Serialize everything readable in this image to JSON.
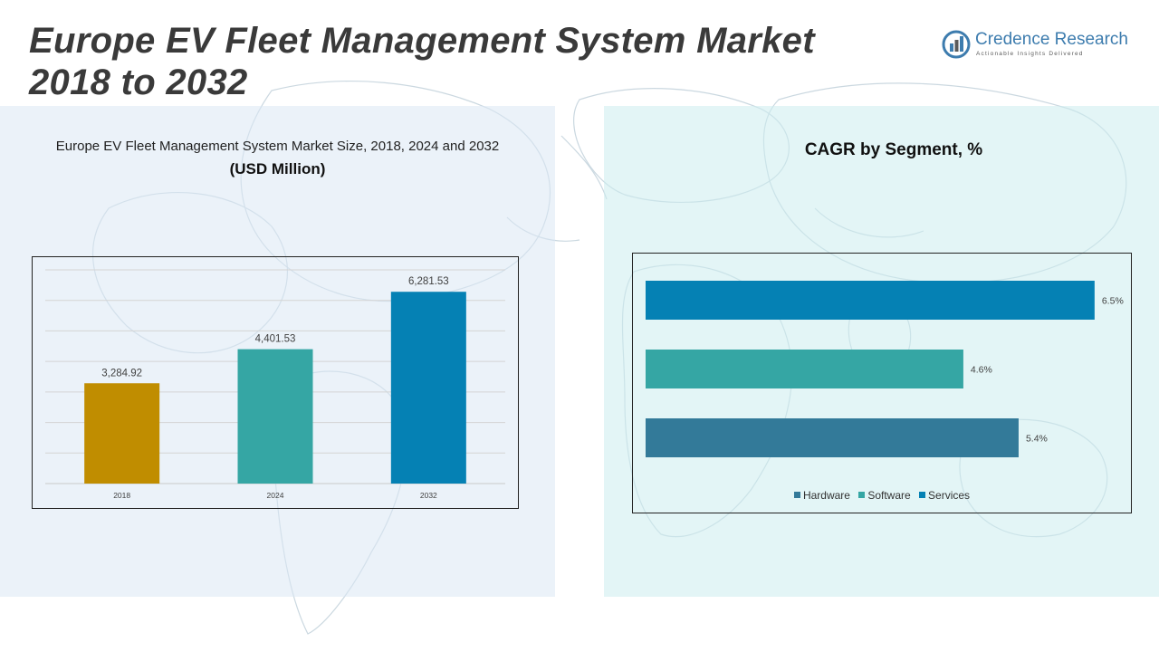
{
  "header": {
    "title_line1": "Europe EV Fleet Management System Market",
    "title_line2": "2018 to 2032"
  },
  "logo": {
    "name": "Credence Research",
    "tagline": "Actionable Insights Delivered"
  },
  "left_panel": {
    "subtitle": "Europe EV Fleet Management System Market Size, 2018, 2024 and 2032",
    "unit": "(USD Million)"
  },
  "right_panel": {
    "title": "CAGR by Segment, %"
  },
  "colors": {
    "bar_2018": "#c08d00",
    "bar_2024": "#35a6a4",
    "bar_2032": "#0581b4",
    "hardware": "#337a99",
    "software": "#35a6a4",
    "services": "#0581b4"
  },
  "chart_data": [
    {
      "type": "bar",
      "title": "Europe EV Fleet Management System Market Size, 2018, 2024 and 2032",
      "ylabel": "USD Million",
      "categories": [
        "2018",
        "2024",
        "2032"
      ],
      "values": [
        3284.92,
        4401.53,
        6281.53
      ],
      "labels": [
        "3,284.92",
        "4,401.53",
        "6,281.53"
      ],
      "ylim": [
        0,
        7000
      ],
      "grid": true
    },
    {
      "type": "bar",
      "orientation": "horizontal",
      "title": "CAGR by Segment, %",
      "categories": [
        "Services",
        "Software",
        "Hardware"
      ],
      "values": [
        6.5,
        4.6,
        5.4
      ],
      "labels": [
        "6.5%",
        "4.6%",
        "5.4%"
      ],
      "xlim": [
        0,
        7
      ],
      "legend": [
        "Hardware",
        "Software",
        "Services"
      ],
      "legend_position": "bottom"
    }
  ]
}
